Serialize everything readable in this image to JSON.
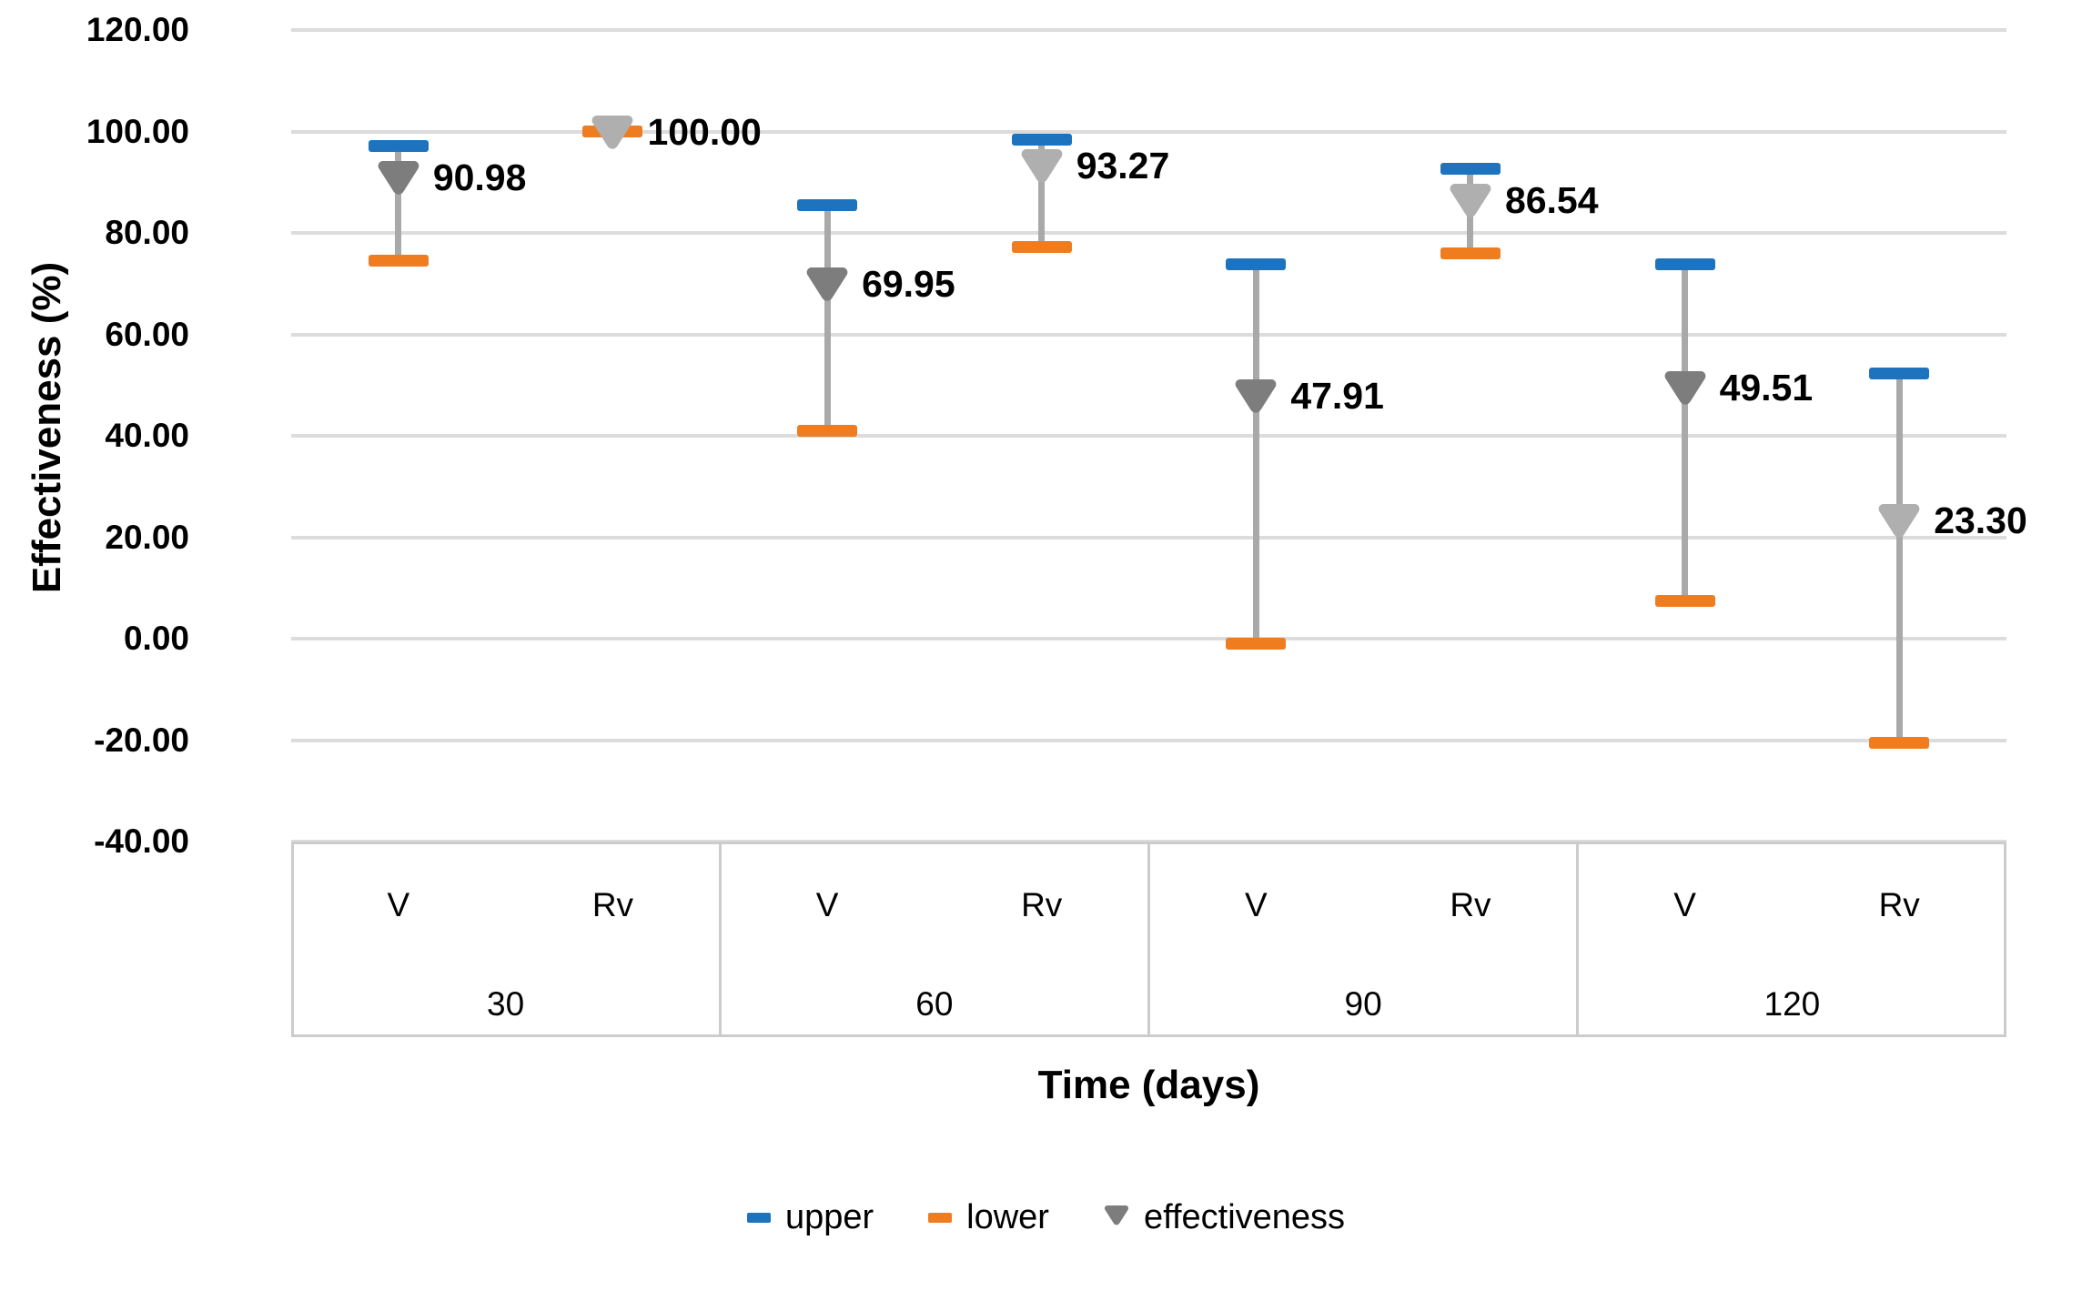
{
  "chart_data": {
    "type": "scatter",
    "title": "",
    "ylabel": "Effectiveness (%)",
    "xlabel": "Time (days)",
    "ylim": [
      -40,
      120
    ],
    "grid": true,
    "legend_position": "bottom",
    "y_ticks": [
      {
        "value": 120,
        "label": "120.00"
      },
      {
        "value": 100,
        "label": "100.00"
      },
      {
        "value": 80,
        "label": "80.00"
      },
      {
        "value": 60,
        "label": "60.00"
      },
      {
        "value": 40,
        "label": "40.00"
      },
      {
        "value": 20,
        "label": "20.00"
      },
      {
        "value": 0,
        "label": "0.00"
      },
      {
        "value": -20,
        "label": "-20.00"
      },
      {
        "value": -40,
        "label": "-40.00"
      }
    ],
    "groups": [
      {
        "time": "30",
        "points": [
          {
            "arm": "V",
            "effectiveness": 90.98,
            "label": "90.98",
            "upper": 97.2,
            "lower": 74.5,
            "marker_color": "#7D7D7D"
          },
          {
            "arm": "Rv",
            "effectiveness": 100.0,
            "label": "100.00",
            "upper": 100.0,
            "lower": 100.0,
            "marker_color": "#AFAFAF"
          }
        ]
      },
      {
        "time": "60",
        "points": [
          {
            "arm": "V",
            "effectiveness": 69.95,
            "label": "69.95",
            "upper": 85.5,
            "lower": 41.0,
            "marker_color": "#7D7D7D"
          },
          {
            "arm": "Rv",
            "effectiveness": 93.27,
            "label": "93.27",
            "upper": 98.4,
            "lower": 77.3,
            "marker_color": "#AFAFAF"
          }
        ]
      },
      {
        "time": "90",
        "points": [
          {
            "arm": "V",
            "effectiveness": 47.91,
            "label": "47.91",
            "upper": 73.9,
            "lower": -0.9,
            "marker_color": "#7D7D7D"
          },
          {
            "arm": "Rv",
            "effectiveness": 86.54,
            "label": "86.54",
            "upper": 92.6,
            "lower": 76.0,
            "marker_color": "#AFAFAF"
          }
        ]
      },
      {
        "time": "120",
        "points": [
          {
            "arm": "V",
            "effectiveness": 49.51,
            "label": "49.51",
            "upper": 73.9,
            "lower": 7.5,
            "marker_color": "#7D7D7D"
          },
          {
            "arm": "Rv",
            "effectiveness": 23.3,
            "label": "23.30",
            "upper": 52.3,
            "lower": -20.6,
            "marker_color": "#AFAFAF"
          }
        ]
      }
    ],
    "legend": [
      {
        "name": "upper",
        "shape": "dash",
        "color": "#1E73BE"
      },
      {
        "name": "lower",
        "shape": "dash",
        "color": "#F07C20"
      },
      {
        "name": "effectiveness",
        "shape": "marker",
        "color": "#7D7D7D"
      }
    ]
  },
  "colors": {
    "upper_cap": "#1E73BE",
    "lower_cap": "#F07C20",
    "stem": "#A9A9A9",
    "gridline": "#DCDCDC",
    "table_border": "#CCCCCC",
    "text": "#000000",
    "background": "#FFFFFF"
  }
}
